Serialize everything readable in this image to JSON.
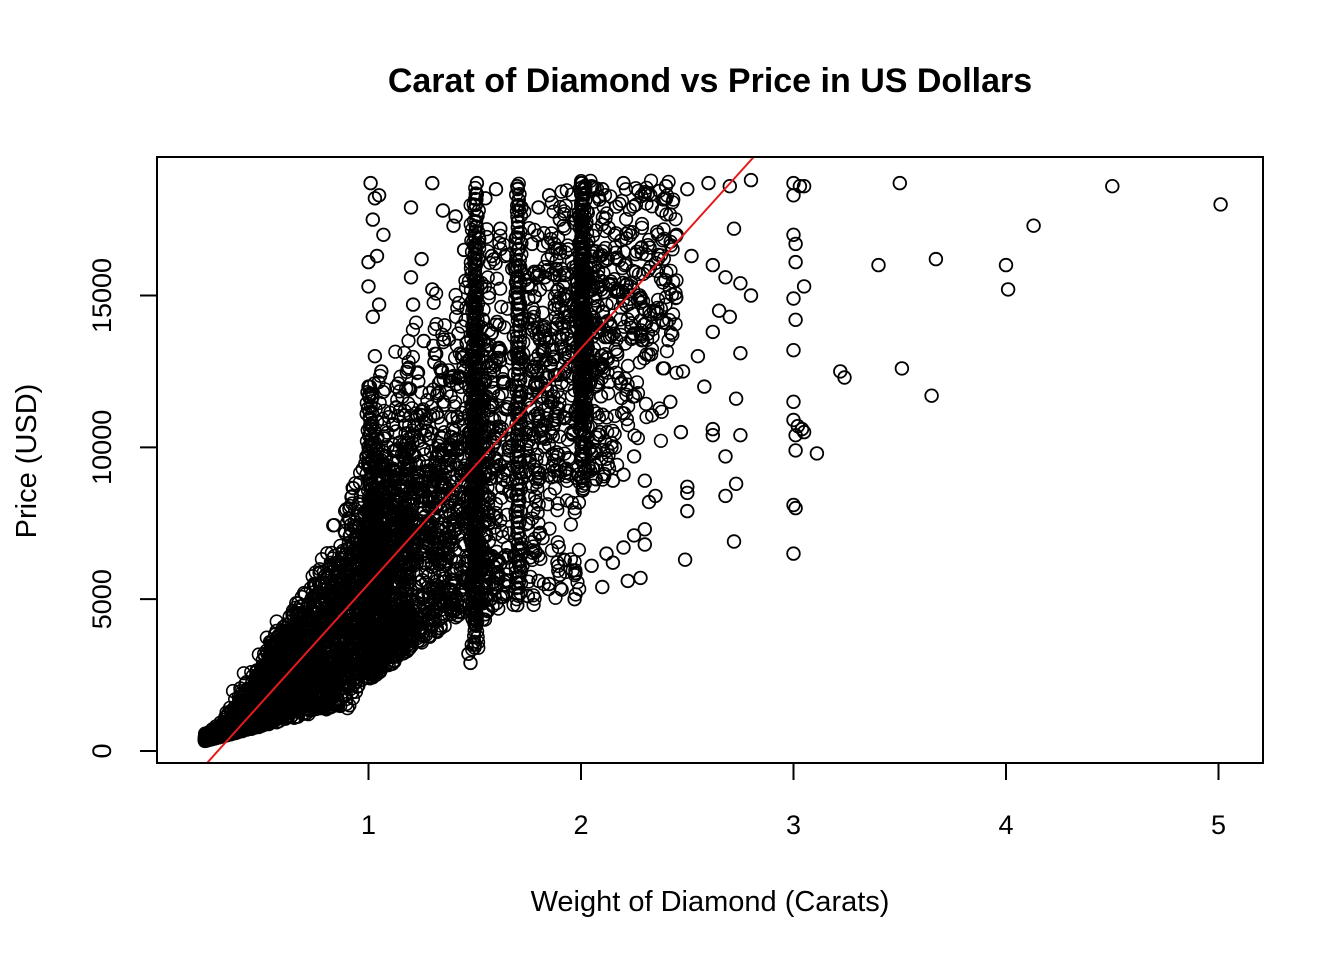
{
  "chart_data": {
    "type": "scatter",
    "title": "Carat of Diamond vs Price in US Dollars",
    "xlabel": "Weight of Diamond (Carats)",
    "ylabel": "Price (USD)",
    "xlim": [
      0.0,
      5.2
    ],
    "ylim": [
      -400,
      19600
    ],
    "x_ticks": [
      1,
      2,
      3,
      4,
      5
    ],
    "y_ticks": [
      0,
      5000,
      10000,
      15000
    ],
    "grid": false,
    "legend": "none",
    "marker": "open-circle",
    "marker_color": "#000000",
    "regression_line": {
      "color": "#e41a1c",
      "intercept": -2256,
      "slope": 7756
    },
    "series": [
      {
        "points": [
          [
            1.01,
            18700
          ],
          [
            1.03,
            18200
          ],
          [
            1.05,
            18300
          ],
          [
            1.02,
            17500
          ],
          [
            1.07,
            17000
          ],
          [
            1.04,
            16300
          ],
          [
            1.0,
            16100
          ],
          [
            1.0,
            15300
          ],
          [
            1.05,
            14700
          ],
          [
            1.02,
            14300
          ],
          [
            1.03,
            13000
          ],
          [
            1.06,
            12500
          ],
          [
            1.0,
            12000
          ],
          [
            1.2,
            17900
          ],
          [
            1.3,
            18700
          ],
          [
            1.35,
            17800
          ],
          [
            1.4,
            17300
          ],
          [
            1.41,
            17600
          ],
          [
            1.25,
            16200
          ],
          [
            1.2,
            15600
          ],
          [
            1.3,
            15200
          ],
          [
            1.45,
            16500
          ],
          [
            1.21,
            14700
          ],
          [
            1.26,
            13500
          ],
          [
            1.31,
            12800
          ],
          [
            1.39,
            12300
          ],
          [
            1.51,
            18700
          ],
          [
            1.55,
            18200
          ],
          [
            1.6,
            18500
          ],
          [
            1.7,
            18600
          ],
          [
            1.72,
            17900
          ],
          [
            1.62,
            17200
          ],
          [
            1.58,
            16300
          ],
          [
            1.8,
            17900
          ],
          [
            1.85,
            18300
          ],
          [
            1.9,
            17500
          ],
          [
            1.77,
            16700
          ],
          [
            1.83,
            15600
          ],
          [
            1.92,
            14900
          ],
          [
            1.75,
            14100
          ],
          [
            2.0,
            18700
          ],
          [
            2.05,
            18600
          ],
          [
            2.1,
            18500
          ],
          [
            2.2,
            18700
          ],
          [
            2.3,
            18400
          ],
          [
            2.4,
            18600
          ],
          [
            2.5,
            18500
          ],
          [
            2.6,
            18700
          ],
          [
            2.7,
            18600
          ],
          [
            2.8,
            18800
          ],
          [
            2.38,
            17800
          ],
          [
            2.45,
            17000
          ],
          [
            2.52,
            16300
          ],
          [
            2.62,
            16000
          ],
          [
            2.68,
            15600
          ],
          [
            2.72,
            17200
          ],
          [
            2.75,
            15400
          ],
          [
            2.8,
            15000
          ],
          [
            2.65,
            14500
          ],
          [
            2.7,
            14300
          ],
          [
            2.62,
            13800
          ],
          [
            2.75,
            13100
          ],
          [
            2.55,
            13000
          ],
          [
            2.48,
            12500
          ],
          [
            2.58,
            12000
          ],
          [
            2.42,
            11500
          ],
          [
            2.73,
            11600
          ],
          [
            2.62,
            10600
          ],
          [
            2.75,
            10400
          ],
          [
            2.68,
            9700
          ],
          [
            2.62,
            10400
          ],
          [
            2.47,
            10500
          ],
          [
            2.5,
            8700
          ],
          [
            2.5,
            8500
          ],
          [
            2.5,
            7900
          ],
          [
            2.68,
            8400
          ],
          [
            2.73,
            8800
          ],
          [
            2.72,
            6900
          ],
          [
            2.49,
            6300
          ],
          [
            2.35,
            8400
          ],
          [
            2.3,
            8900
          ],
          [
            2.32,
            8200
          ],
          [
            2.25,
            9700
          ],
          [
            2.2,
            9100
          ],
          [
            2.15,
            8900
          ],
          [
            2.3,
            7300
          ],
          [
            2.25,
            7100
          ],
          [
            2.2,
            6700
          ],
          [
            2.3,
            6800
          ],
          [
            2.12,
            6500
          ],
          [
            2.28,
            5700
          ],
          [
            2.22,
            5600
          ],
          [
            2.1,
            5400
          ],
          [
            2.15,
            6200
          ],
          [
            2.05,
            6100
          ],
          [
            1.97,
            5000
          ],
          [
            1.92,
            6300
          ],
          [
            1.9,
            5800
          ],
          [
            1.85,
            5500
          ],
          [
            1.8,
            5600
          ],
          [
            1.75,
            5100
          ],
          [
            1.7,
            4800
          ],
          [
            1.65,
            5200
          ],
          [
            1.55,
            4500
          ],
          [
            1.5,
            4200
          ],
          [
            1.47,
            3200
          ],
          [
            1.48,
            2900
          ],
          [
            1.5,
            3500
          ],
          [
            3.0,
            18700
          ],
          [
            3.0,
            18300
          ],
          [
            3.03,
            18600
          ],
          [
            3.05,
            18600
          ],
          [
            3.0,
            17000
          ],
          [
            3.01,
            16700
          ],
          [
            3.01,
            16100
          ],
          [
            3.0,
            14900
          ],
          [
            3.05,
            15300
          ],
          [
            3.01,
            14200
          ],
          [
            3.0,
            13200
          ],
          [
            3.0,
            11500
          ],
          [
            3.0,
            10900
          ],
          [
            3.02,
            10700
          ],
          [
            3.04,
            10600
          ],
          [
            3.01,
            10400
          ],
          [
            3.05,
            10500
          ],
          [
            3.11,
            9800
          ],
          [
            3.01,
            9900
          ],
          [
            3.0,
            8100
          ],
          [
            3.01,
            8000
          ],
          [
            3.0,
            6500
          ],
          [
            3.22,
            12500
          ],
          [
            3.24,
            12300
          ],
          [
            3.4,
            16000
          ],
          [
            3.5,
            18700
          ],
          [
            3.51,
            12600
          ],
          [
            3.65,
            11700
          ],
          [
            3.67,
            16200
          ],
          [
            4.0,
            16000
          ],
          [
            4.01,
            15200
          ],
          [
            4.13,
            17300
          ],
          [
            4.5,
            18600
          ],
          [
            5.01,
            18000
          ]
        ]
      }
    ]
  }
}
